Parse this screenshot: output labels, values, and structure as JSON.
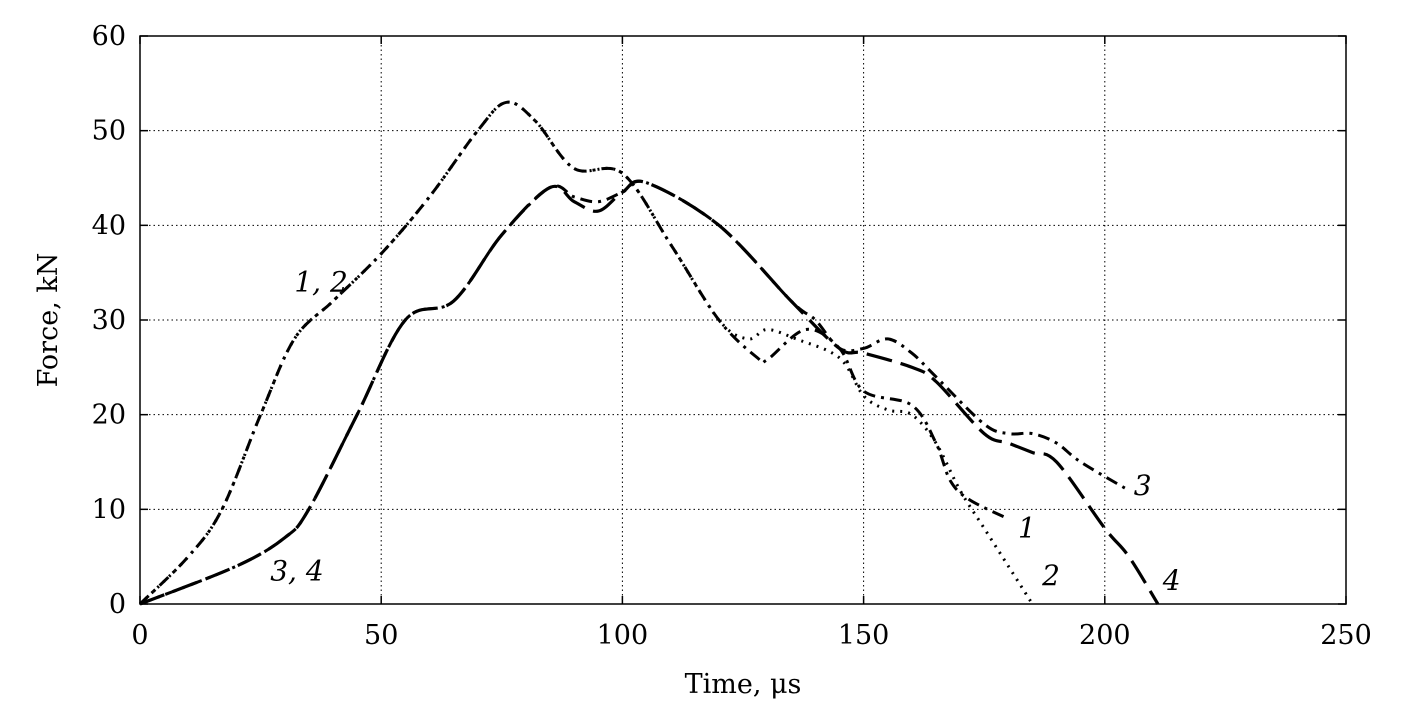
{
  "chart_data": {
    "type": "line",
    "xlabel": "Time, μs",
    "ylabel": "Force, kN",
    "xlim": [
      0,
      250
    ],
    "ylim": [
      0,
      60
    ],
    "xticks": [
      0,
      50,
      100,
      150,
      200,
      250
    ],
    "yticks": [
      0,
      10,
      20,
      30,
      40,
      50,
      60
    ],
    "grid": true,
    "series": [
      {
        "name": "1",
        "dash": "dashdot",
        "x": [
          0,
          10,
          17,
          25,
          32,
          40,
          50,
          60,
          70,
          76,
          82,
          90,
          100,
          110,
          120,
          128,
          130,
          138,
          145,
          150,
          160,
          165,
          168,
          172,
          180
        ],
        "y": [
          0,
          5,
          10,
          20,
          28,
          32,
          37,
          43,
          50,
          53,
          51,
          46,
          45.5,
          38,
          30,
          26,
          25.8,
          29,
          27,
          22.5,
          21,
          17,
          13,
          11,
          9
        ]
      },
      {
        "name": "2",
        "dash": "dotted",
        "x": [
          0,
          10,
          17,
          25,
          32,
          40,
          50,
          60,
          70,
          76,
          82,
          90,
          100,
          110,
          120,
          126,
          130,
          136,
          145,
          150,
          155,
          160,
          165,
          170,
          175,
          180,
          185
        ],
        "y": [
          0,
          5,
          10,
          20,
          28,
          32,
          37,
          43,
          50,
          53,
          51,
          46,
          45.5,
          38,
          30,
          28,
          29,
          28,
          26,
          22,
          20.5,
          20,
          17,
          12,
          8,
          4,
          0
        ]
      },
      {
        "name": "3",
        "dash": "dashdot",
        "x": [
          0,
          20,
          30,
          35,
          45,
          55,
          65,
          75,
          85,
          90,
          95,
          100,
          105,
          120,
          135,
          140,
          145,
          150,
          155,
          160,
          165,
          175,
          180,
          185,
          190,
          195,
          205
        ],
        "y": [
          0,
          4,
          7,
          10,
          20,
          30,
          32,
          39,
          44,
          43,
          42.5,
          43.5,
          44.5,
          40,
          32,
          30,
          27,
          27,
          28,
          26.5,
          24,
          19,
          18,
          18,
          17,
          15,
          12
        ]
      },
      {
        "name": "4",
        "dash": "longdash",
        "x": [
          0,
          20,
          30,
          35,
          45,
          55,
          65,
          75,
          85,
          90,
          95,
          100,
          105,
          120,
          135,
          145,
          150,
          160,
          165,
          175,
          180,
          185,
          190,
          200,
          205,
          211
        ],
        "y": [
          0,
          4,
          7,
          10,
          20,
          30,
          32,
          39,
          44,
          42.5,
          41.5,
          43.5,
          44.5,
          40,
          32,
          27,
          26.5,
          25,
          23.5,
          18,
          17,
          16,
          15,
          8,
          5,
          0
        ]
      }
    ],
    "annotations": [
      {
        "text": "1, 2",
        "x": 32,
        "y": 33
      },
      {
        "text": "3, 4",
        "x": 27,
        "y": 2.5
      },
      {
        "text": "1",
        "x": 182,
        "y": 7
      },
      {
        "text": "2",
        "x": 187,
        "y": 2
      },
      {
        "text": "3",
        "x": 206,
        "y": 11.5
      },
      {
        "text": "4",
        "x": 212,
        "y": 1.5
      }
    ]
  }
}
